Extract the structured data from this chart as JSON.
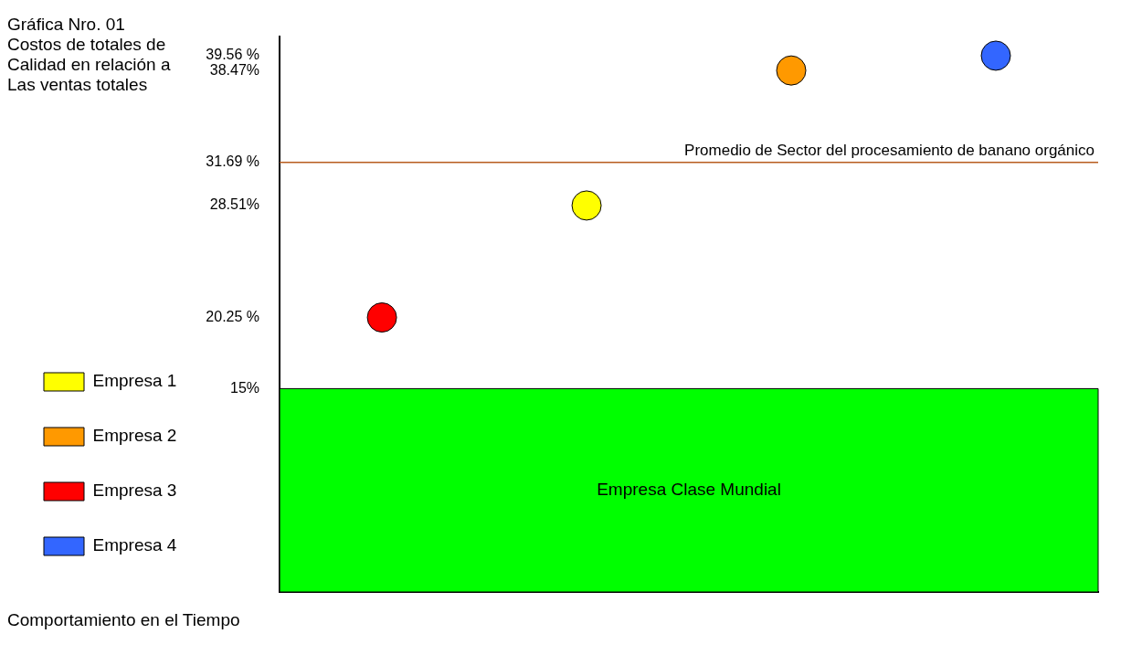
{
  "chart_data": {
    "type": "scatter",
    "title": "Gráfica Nro. 01\nCostos de totales de\nCalidad en relación a\nLas ventas totales",
    "annotations": [
      "Comportamiento en el Tiempo"
    ],
    "categories": [
      null,
      null,
      null,
      null
    ],
    "series": [
      {
        "name": "Empresa 1",
        "color": "#ffff00",
        "values": [
          null,
          28.51,
          null,
          null
        ]
      },
      {
        "name": "Empresa 2",
        "color": "#ff9900",
        "values": [
          null,
          null,
          38.47,
          null
        ]
      },
      {
        "name": "Empresa 3",
        "color": "#ff0000",
        "values": [
          20.25,
          null,
          null,
          null
        ]
      },
      {
        "name": "Empresa 4",
        "color": "#3366ff",
        "values": [
          null,
          null,
          null,
          39.56
        ]
      }
    ],
    "bands": [
      {
        "axis": "y",
        "from": 0,
        "to": 15,
        "label": "Empresa Clase Mundial",
        "color": "#00ff00"
      }
    ],
    "ref_lines": [
      {
        "axis": "y",
        "value": 31.69,
        "label": "Promedio de Sector del procesamiento de banano orgánico",
        "color": "#b85c1e"
      }
    ],
    "ylim": [
      0,
      41
    ],
    "yticks": [
      {
        "value": 15,
        "label": "15%"
      },
      {
        "value": 20.25,
        "label": "20.25 %"
      },
      {
        "value": 28.51,
        "label": "28.51%"
      },
      {
        "value": 31.69,
        "label": "31.69 %"
      },
      {
        "value": 38.47,
        "label": "38.47%"
      },
      {
        "value": 39.56,
        "label": "39.56 %"
      }
    ],
    "grid": false,
    "legend": "left",
    "tick_labels": "y",
    "marker": "circle"
  }
}
